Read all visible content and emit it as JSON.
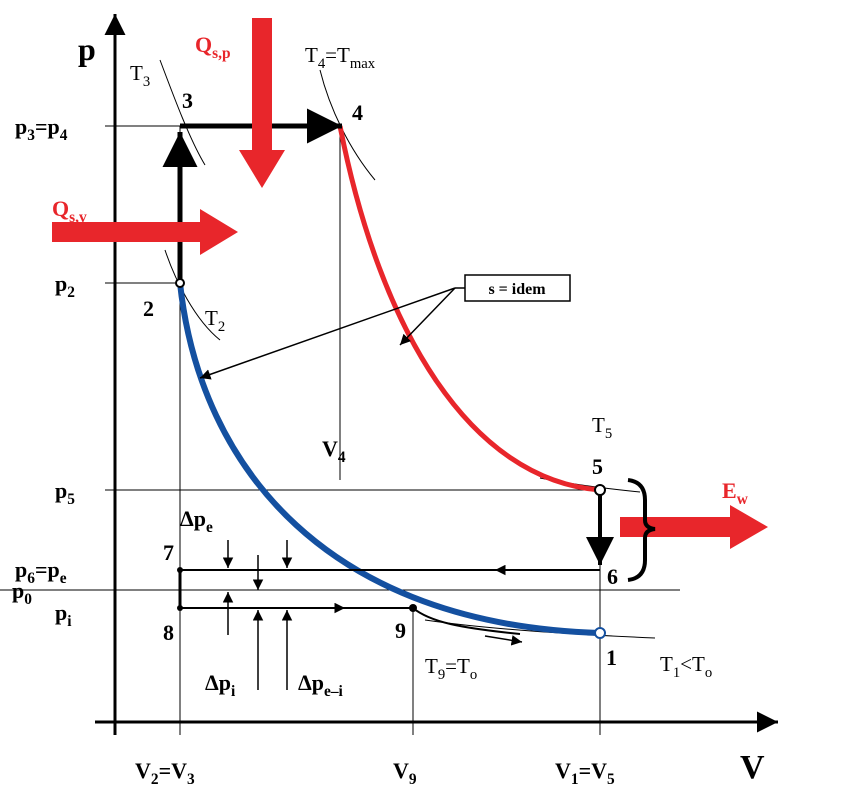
{
  "axes": {
    "p": "p",
    "V": "V"
  },
  "heat": [
    [
      {
        "t": "Q"
      },
      {
        "s": "s,p"
      }
    ],
    [
      {
        "t": "Q"
      },
      {
        "s": "s,v"
      }
    ],
    [
      {
        "t": "E"
      },
      {
        "s": "w"
      }
    ]
  ],
  "points": [
    "1",
    "2",
    "3",
    "4",
    "5",
    "6",
    "7",
    "8",
    "9"
  ],
  "pressures": [
    [
      {
        "t": "p"
      },
      {
        "s": "3"
      },
      {
        "t": "=p"
      },
      {
        "s": "4"
      }
    ],
    [
      {
        "t": "p"
      },
      {
        "s": "2"
      }
    ],
    [
      {
        "t": "p"
      },
      {
        "s": "5"
      }
    ],
    [
      {
        "t": "p"
      },
      {
        "s": "6"
      },
      {
        "t": "=p"
      },
      {
        "s": "e"
      }
    ],
    [
      {
        "t": "p"
      },
      {
        "s": "0"
      }
    ],
    [
      {
        "t": "p"
      },
      {
        "s": "i"
      }
    ]
  ],
  "volumes": [
    [
      {
        "t": "V"
      },
      {
        "s": "2"
      },
      {
        "t": "=V"
      },
      {
        "s": "3"
      }
    ],
    [
      {
        "t": "V"
      },
      {
        "s": "4"
      }
    ],
    [
      {
        "t": "V"
      },
      {
        "s": "9"
      }
    ],
    [
      {
        "t": "V"
      },
      {
        "s": "1"
      },
      {
        "t": "=V"
      },
      {
        "s": "5"
      }
    ]
  ],
  "temperatures": [
    [
      {
        "t": "T"
      },
      {
        "s": "3"
      }
    ],
    [
      {
        "t": "T"
      },
      {
        "s": "4"
      },
      {
        "t": "=T"
      },
      {
        "s": "max"
      }
    ],
    [
      {
        "t": "T"
      },
      {
        "s": "2"
      }
    ],
    [
      {
        "t": "T"
      },
      {
        "s": "5"
      }
    ],
    [
      {
        "t": "T"
      },
      {
        "s": "9"
      },
      {
        "t": "=T"
      },
      {
        "s": "o"
      }
    ],
    [
      {
        "t": "T"
      },
      {
        "s": "1"
      },
      {
        "t": "<T"
      },
      {
        "s": "o"
      }
    ]
  ],
  "isentrope_note": "s = idem",
  "pressure_drops": [
    [
      {
        "t": "Δp"
      },
      {
        "s": "e"
      }
    ],
    [
      {
        "t": "Δp"
      },
      {
        "s": "i"
      }
    ],
    [
      {
        "t": "Δp"
      },
      {
        "s": "e–i"
      }
    ]
  ]
}
